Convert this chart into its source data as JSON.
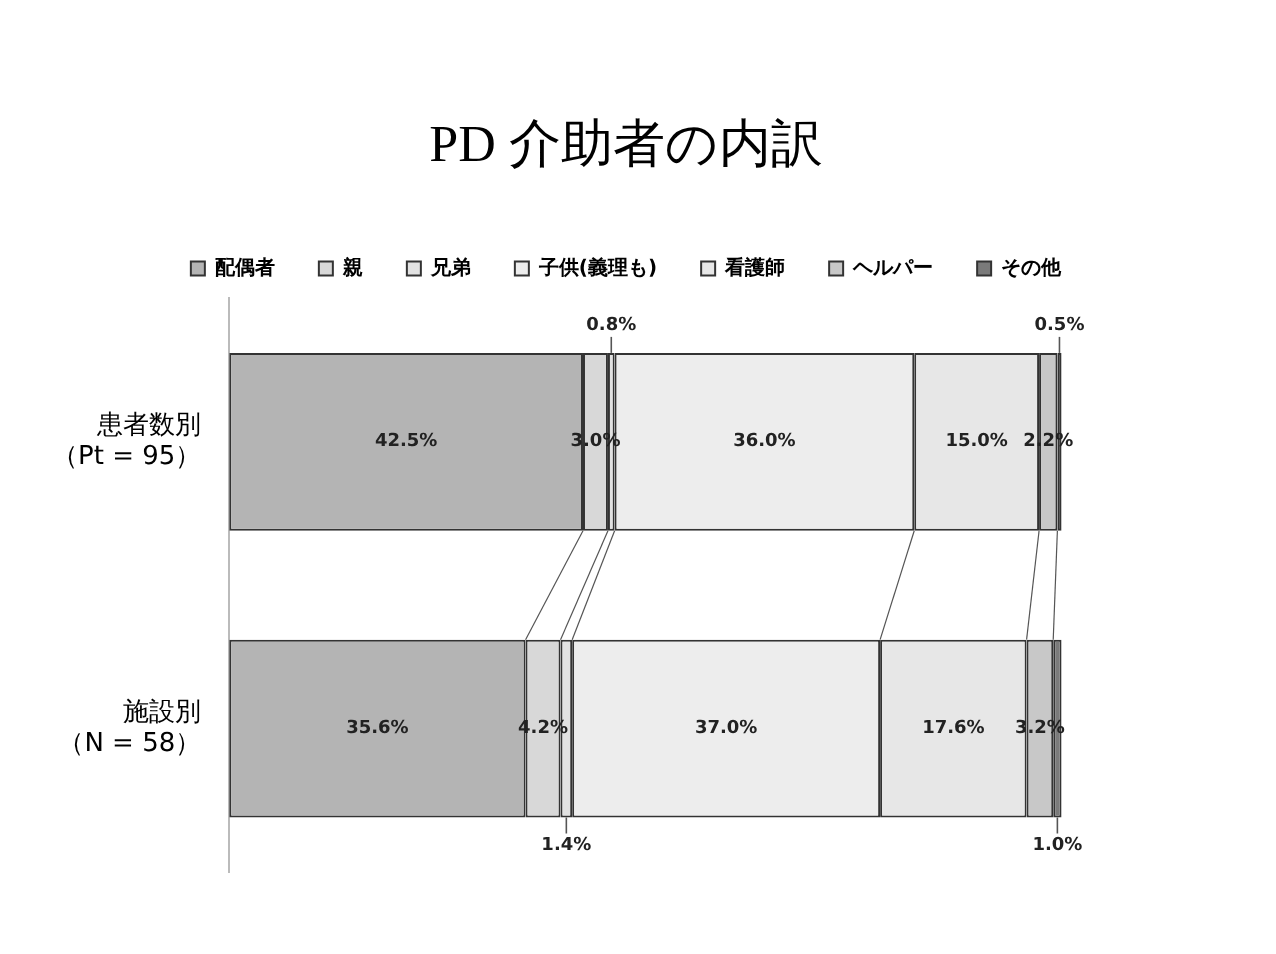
{
  "chart_data": {
    "type": "bar",
    "orientation": "horizontal",
    "stacked": true,
    "title": "PD 介助者の内訳",
    "categories": [
      "患者数別（Pt = 95）",
      "施設別（N = 58）"
    ],
    "legend": "top",
    "grid": false,
    "series": [
      {
        "name": "配偶者",
        "color": "#b4b4b4",
        "values": [
          42.5,
          35.6
        ],
        "value_labels": [
          "42.5%",
          "35.6%"
        ]
      },
      {
        "name": "親",
        "color": "#d8d8d8",
        "values": [
          3.0,
          4.2
        ],
        "value_labels": [
          "3.0%",
          "4.2%"
        ]
      },
      {
        "name": "兄弟",
        "color": "#e2e2e2",
        "values": [
          0.8,
          1.4
        ],
        "value_labels": [
          "0.8%",
          "1.4%"
        ]
      },
      {
        "name": "子供(義理も)",
        "color": "#ededed",
        "values": [
          36.0,
          37.0
        ],
        "value_labels": [
          "36.0%",
          "37.0%"
        ]
      },
      {
        "name": "看護師",
        "color": "#e7e7e7",
        "values": [
          15.0,
          17.6
        ],
        "value_labels": [
          "15.0%",
          "17.6%"
        ]
      },
      {
        "name": "ヘルパー",
        "color": "#c8c8c8",
        "values": [
          2.2,
          3.2
        ],
        "value_labels": [
          "2.2%",
          "3.2%"
        ]
      },
      {
        "name": "その他",
        "color": "#7a7a7a",
        "values": [
          0.5,
          1.0
        ],
        "value_labels": [
          "0.5%",
          "1.0%"
        ]
      }
    ]
  }
}
